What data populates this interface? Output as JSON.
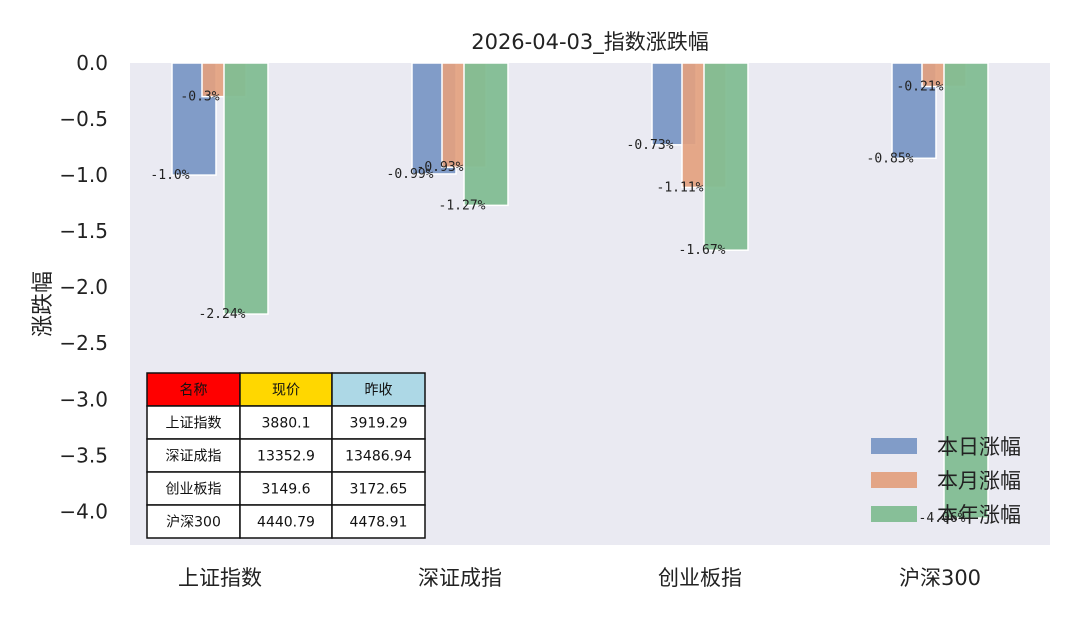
{
  "chart_data": {
    "type": "bar",
    "title": "2026-04-03_指数涨跌幅",
    "xlabel": "",
    "ylabel": "涨跌幅",
    "categories": [
      "上证指数",
      "深证成指",
      "创业板指",
      "沪深300"
    ],
    "ylim": [
      -4.3,
      0.0
    ],
    "yticks": [
      "0.0",
      "−0.5",
      "−1.0",
      "−1.5",
      "−2.0",
      "−2.5",
      "−3.0",
      "−3.5",
      "−4.0"
    ],
    "ytick_values": [
      0.0,
      -0.5,
      -1.0,
      -1.5,
      -2.0,
      -2.5,
      -3.0,
      -3.5,
      -4.0
    ],
    "grid": false,
    "legend_position": "bottom-right",
    "series": [
      {
        "name": "本日涨幅",
        "color": "#7b98c5",
        "values": [
          -1.0,
          -0.99,
          -0.73,
          -0.85
        ],
        "labels": [
          "-1.0%",
          "-0.99%",
          "-0.73%",
          "-0.85%"
        ]
      },
      {
        "name": "本月涨幅",
        "color": "#e3a17f",
        "values": [
          -0.3,
          -0.93,
          -1.11,
          -0.21
        ],
        "labels": [
          "-0.3%",
          "-0.93%",
          "-1.11%",
          "-0.21%"
        ]
      },
      {
        "name": "本年涨幅",
        "color": "#82bd92",
        "values": [
          -2.24,
          -1.27,
          -1.67,
          -4.06
        ],
        "labels": [
          "-2.24%",
          "-1.27%",
          "-1.67%",
          "-4.06%"
        ]
      }
    ],
    "table": {
      "headers": [
        "名称",
        "现价",
        "昨收"
      ],
      "header_colors": [
        "#ff0000",
        "#ffd700",
        "#add8e6"
      ],
      "rows": [
        [
          "上证指数",
          "3880.1",
          "3919.29"
        ],
        [
          "深证成指",
          "13352.9",
          "13486.94"
        ],
        [
          "创业板指",
          "3149.6",
          "3172.65"
        ],
        [
          "沪深300",
          "4440.79",
          "4478.91"
        ]
      ]
    }
  }
}
